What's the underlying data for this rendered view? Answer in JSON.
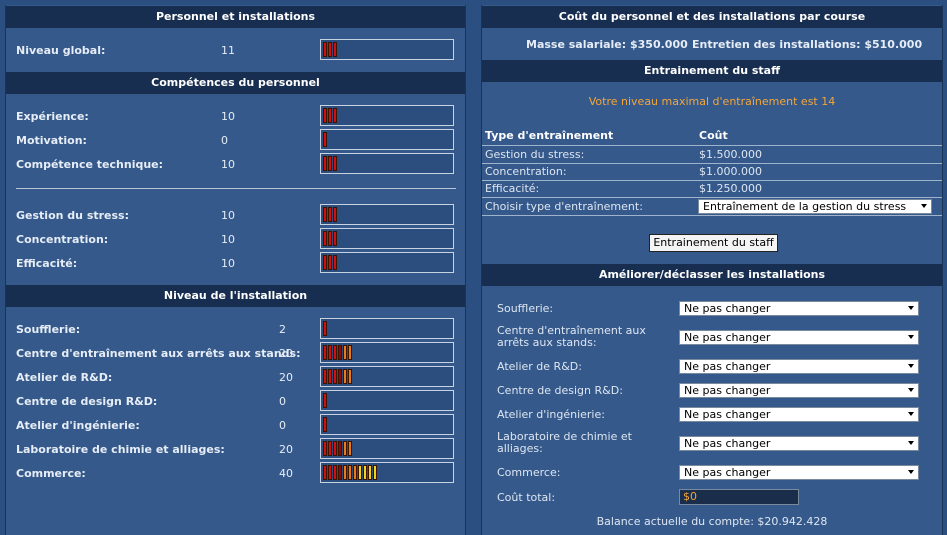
{
  "left": {
    "personnel_header": "Personnel et installations",
    "global": {
      "label": "Niveau global:",
      "value": "11",
      "level": 3
    },
    "skills_header": "Compétences du personnel",
    "skills": [
      {
        "label": "Expérience:",
        "value": "10",
        "level": 3
      },
      {
        "label": "Motivation:",
        "value": "0",
        "level": 1
      },
      {
        "label": "Compétence technique:",
        "value": "10",
        "level": 3
      }
    ],
    "skills2": [
      {
        "label": "Gestion du stress:",
        "value": "10",
        "level": 3
      },
      {
        "label": "Concentration:",
        "value": "10",
        "level": 3
      },
      {
        "label": "Efficacité:",
        "value": "10",
        "level": 3
      }
    ],
    "facility_header": "Niveau de l'installation",
    "facilities": [
      {
        "label": "Soufflerie:",
        "value": "2",
        "level": 1
      },
      {
        "label": "Centre d'entraînement aux arrêts aux stands:",
        "value": "20",
        "level": 6
      },
      {
        "label": "Atelier de R&D:",
        "value": "20",
        "level": 6
      },
      {
        "label": "Centre de design R&D:",
        "value": "0",
        "level": 1
      },
      {
        "label": "Atelier d'ingénierie:",
        "value": "0",
        "level": 1
      },
      {
        "label": "Laboratoire de chimie et alliages:",
        "value": "20",
        "level": 6
      },
      {
        "label": "Commerce:",
        "value": "40",
        "level": 11
      }
    ]
  },
  "right": {
    "cost_header": "Coût du personnel et des installations par course",
    "salary": "Masse salariale: $350.000",
    "maintenance": "Entretien des installations: $510.000",
    "training_header": "Entrainement du staff",
    "max_training": "Votre niveau maximal d'entraînement est 14",
    "table_head": {
      "type": "Type d'entraînement",
      "cost": "Coût"
    },
    "rows": [
      {
        "type": "Gestion du stress:",
        "cost": "$1.500.000"
      },
      {
        "type": "Concentration:",
        "cost": "$1.000.000"
      },
      {
        "type": "Efficacité:",
        "cost": "$1.250.000"
      }
    ],
    "choose_label": "Choisir type d'entraînement:",
    "choose_value": "Entraînement de la gestion du stress",
    "train_button": "Entrainement du staff",
    "upgrade_header": "Améliorer/déclasser les installations",
    "upgrades": [
      {
        "label": "Soufflerie:",
        "value": "Ne pas changer"
      },
      {
        "label": "Centre d'entraînement aux arrêts aux stands:",
        "value": "Ne pas changer"
      },
      {
        "label": "Atelier de R&D:",
        "value": "Ne pas changer"
      },
      {
        "label": "Centre de design R&D:",
        "value": "Ne pas changer"
      },
      {
        "label": "Atelier d'ingénierie:",
        "value": "Ne pas changer"
      },
      {
        "label": "Laboratoire de chimie et alliages:",
        "value": "Ne pas changer"
      },
      {
        "label": "Commerce:",
        "value": "Ne pas changer"
      }
    ],
    "total_label": "Coût total:",
    "total_value": "$0",
    "balance": "Balance actuelle du compte: $20.942.428"
  },
  "colors": {
    "bar_red": "#d01010",
    "bar_dark_red": "#8a0c08",
    "bar_orange": "#e87a18",
    "bar_yellow": "#f4d21c",
    "accent_orange": "#f3a63a"
  }
}
